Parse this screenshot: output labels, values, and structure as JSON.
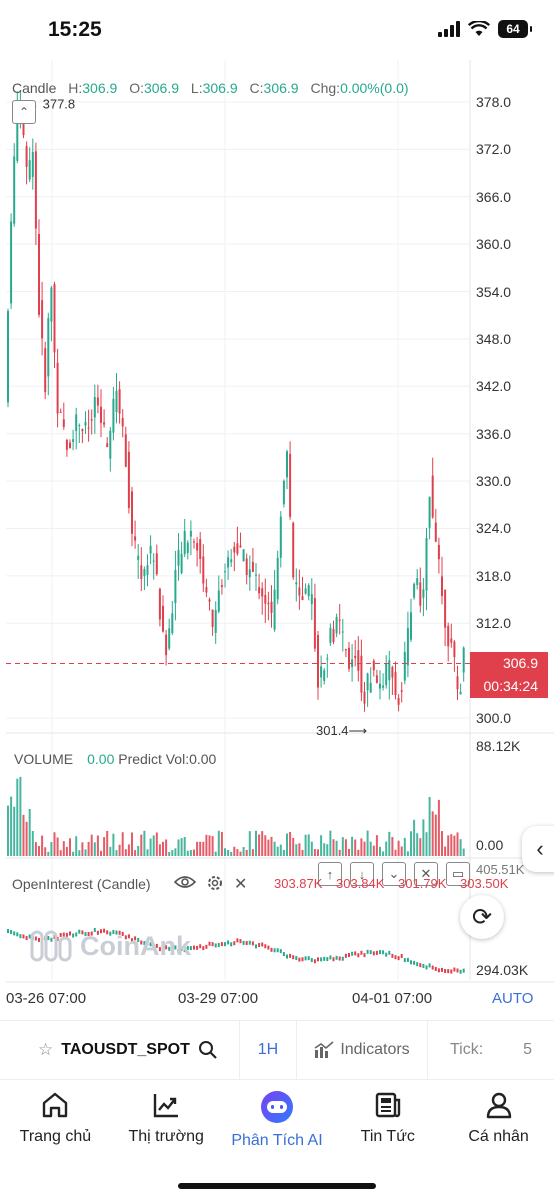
{
  "status": {
    "time": "15:25",
    "battery": "64"
  },
  "chart": {
    "type_label": "Candle",
    "ohlc": {
      "h": "306.9",
      "o": "306.9",
      "l": "306.9",
      "c": "306.9",
      "chg": "0.00%(0.0)"
    },
    "h_label": "H:",
    "o_label": "O:",
    "l_label": "L:",
    "c_label": "C:",
    "chg_label": "Chg:",
    "high_marker": "377.8",
    "low_marker": "301.4",
    "y_ticks": [
      "378.0",
      "372.0",
      "366.0",
      "360.0",
      "354.0",
      "348.0",
      "342.0",
      "336.0",
      "330.0",
      "324.0",
      "318.0",
      "312.0",
      "300.0"
    ],
    "last_price": "306.9",
    "countdown": "00:34:24",
    "x_ticks": [
      "03-26 07:00",
      "03-29 07:00",
      "04-01 07:00"
    ],
    "auto_label": "AUTO",
    "colors": {
      "up": "#28a98d",
      "down": "#e0404c",
      "accent": "#3a6fd8"
    }
  },
  "volume": {
    "label": "VOLUME",
    "value": "0.00",
    "predict": "Predict Vol:0.00",
    "max": "88.12K",
    "min": "0.00"
  },
  "open_interest": {
    "label": "OpenInterest (Candle)",
    "values": [
      "303.87K",
      "303.84K",
      "301.79K",
      "303.50K"
    ],
    "scale_top": "405.51K",
    "scale_bottom": "294.03K"
  },
  "watermark": "CoinAnk",
  "toolbar": {
    "symbol": "TAOUSDT_SPOT",
    "timeframe": "1H",
    "indicators": "Indicators",
    "tick_label": "Tick:",
    "tick_value": "5"
  },
  "nav": [
    {
      "label": "Trang chủ",
      "icon": "home-icon"
    },
    {
      "label": "Thị trường",
      "icon": "market-chart-icon"
    },
    {
      "label": "Phân Tích AI",
      "icon": "ai-robot-icon"
    },
    {
      "label": "Tin Tức",
      "icon": "news-icon"
    },
    {
      "label": "Cá nhân",
      "icon": "profile-icon"
    }
  ]
}
